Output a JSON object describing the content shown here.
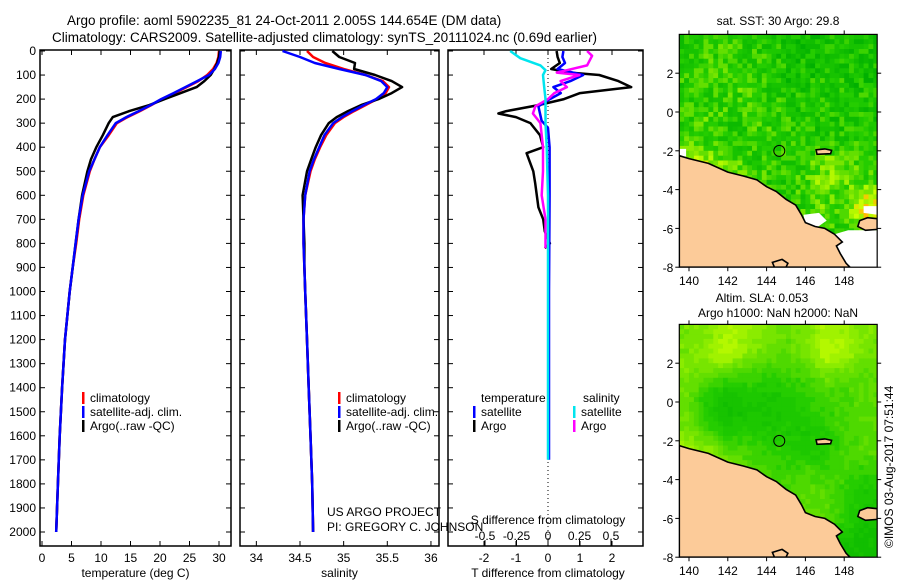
{
  "header": {
    "title_line1": "Argo profile: aoml 5902235_81 24-Oct-2011 2.005S 144.654E (DM data)",
    "title_line2": "Climatology: CARS2009. Satellite-adjusted climatology: synTS_20111024.nc (0.69d earlier)"
  },
  "credits": {
    "project": "US ARGO PROJECT",
    "pi": "PI: GREGORY C. JOHNSON",
    "timestamp": "©IMOS 03-Aug-2017 07:51:44"
  },
  "chart_data": [
    {
      "type": "line",
      "title": "",
      "xlabel": "temperature (deg C)",
      "ylabel": "",
      "xlim": [
        -0.3,
        32
      ],
      "ylim": [
        2058,
        -4
      ],
      "xticks": [
        0,
        5,
        10,
        15,
        20,
        25,
        30
      ],
      "yticks": [
        0,
        100,
        200,
        300,
        400,
        500,
        600,
        700,
        800,
        900,
        1000,
        1100,
        1200,
        1300,
        1400,
        1500,
        1600,
        1700,
        1800,
        1900,
        2000
      ],
      "depth": [
        0,
        25,
        50,
        75,
        100,
        125,
        150,
        175,
        200,
        225,
        250,
        275,
        300,
        350,
        400,
        450,
        500,
        600,
        700,
        800,
        900,
        1000,
        1200,
        1400,
        1600,
        1800,
        2000
      ],
      "series": [
        {
          "name": "climatology",
          "color": "#ff0000",
          "values": [
            30,
            29.9,
            29.6,
            29,
            28,
            26.5,
            24.5,
            22.5,
            20.3,
            18.5,
            16.6,
            14.5,
            12.7,
            11.3,
            9.8,
            8.9,
            8.1,
            7.0,
            6.3,
            5.8,
            5.2,
            4.7,
            3.9,
            3.4,
            3.0,
            2.7,
            2.4
          ]
        },
        {
          "name": "Argo(..raw -QC)",
          "color": "#000000",
          "values": [
            30.1,
            30.0,
            29.7,
            29.2,
            28.6,
            27.5,
            26.2,
            23.5,
            20.8,
            18.2,
            14.8,
            12.0,
            11.3,
            10.3,
            9.2,
            8.3,
            7.7,
            6.8,
            6.2,
            5.7,
            5.2,
            4.7,
            3.9,
            3.4,
            3.0,
            2.7,
            2.4
          ]
        },
        {
          "name": "satellite-adj. clim.",
          "color": "#0000ff",
          "values": [
            30.3,
            30.2,
            29.9,
            29.3,
            28.3,
            26.3,
            24.3,
            22.3,
            20.2,
            18.4,
            16.4,
            14.3,
            12.5,
            11.1,
            9.8,
            8.9,
            8.0,
            6.9,
            6.2,
            5.7,
            5.2,
            4.7,
            3.9,
            3.4,
            3.0,
            2.7,
            2.4
          ]
        }
      ],
      "legend": [
        "climatology",
        "satellite-adj. clim.",
        "Argo(..raw -QC)"
      ],
      "legend_position": "lower-middle"
    },
    {
      "type": "line",
      "title": "",
      "xlabel": "salinity",
      "ylabel": "",
      "xlim": [
        33.81,
        36.09
      ],
      "ylim": [
        2058,
        -4
      ],
      "xticks": [
        34,
        34.5,
        35,
        35.5,
        36
      ],
      "depth": [
        0,
        25,
        50,
        75,
        100,
        125,
        150,
        175,
        200,
        225,
        250,
        275,
        300,
        350,
        400,
        450,
        500,
        600,
        700,
        800,
        900,
        1000,
        1200,
        1400,
        1600,
        1800,
        2000
      ],
      "series": [
        {
          "name": "climatology",
          "color": "#ff0000",
          "values": [
            34.58,
            34.65,
            34.79,
            35.0,
            35.25,
            35.45,
            35.52,
            35.48,
            35.38,
            35.25,
            35.12,
            35.0,
            34.9,
            34.8,
            34.73,
            34.67,
            34.62,
            34.56,
            34.54,
            34.54,
            34.55,
            34.56,
            34.58,
            34.6,
            34.62,
            34.64,
            34.65
          ]
        },
        {
          "name": "Argo(..raw -QC)",
          "color": "#000000",
          "values": [
            34.87,
            34.95,
            35.13,
            35.12,
            35.36,
            35.55,
            35.67,
            35.55,
            35.4,
            35.2,
            35.05,
            34.92,
            34.83,
            34.74,
            34.68,
            34.63,
            34.58,
            34.53,
            34.54,
            34.55,
            34.55,
            34.56,
            34.58,
            34.6,
            34.62,
            34.64,
            34.65
          ]
        },
        {
          "name": "satellite-adj. clim.",
          "color": "#0000ff",
          "values": [
            34.3,
            34.5,
            34.67,
            34.95,
            35.25,
            35.43,
            35.5,
            35.46,
            35.37,
            35.23,
            35.1,
            34.98,
            34.88,
            34.78,
            34.72,
            34.66,
            34.61,
            34.56,
            34.54,
            34.54,
            34.55,
            34.56,
            34.58,
            34.6,
            34.62,
            34.64,
            34.65
          ]
        }
      ],
      "legend": [
        "climatology",
        "satellite-adj. clim.",
        "Argo(..raw -QC)"
      ],
      "legend_position": "lower-middle"
    },
    {
      "type": "line",
      "title": "",
      "xlabel": "T difference from climatology",
      "xlabel2": "S difference from climatology",
      "xlim": [
        -3.125,
        2.97
      ],
      "xlim_s": [
        -0.49,
        0.75
      ],
      "ylim": [
        2058,
        -4
      ],
      "xticks": [
        -2,
        -1,
        0,
        1,
        2
      ],
      "xticks_s": [
        "-0.5",
        "-0.25",
        "0",
        "0.25",
        "0.5"
      ],
      "legend_headers": [
        "temperature",
        "salinity"
      ],
      "series": [
        {
          "name": "Argo",
          "group": "temperature",
          "color": "#000000",
          "depth": [
            0,
            25,
            50,
            75,
            90,
            100,
            125,
            150,
            175,
            200,
            225,
            250,
            260,
            275,
            300,
            350,
            400,
            425,
            450,
            500,
            550,
            600,
            650,
            700,
            750,
            800,
            820
          ],
          "values": [
            0.27,
            0.3,
            0.37,
            0.1,
            0.7,
            1.6,
            2.2,
            2.6,
            1.0,
            0.5,
            -0.3,
            -1.3,
            -1.55,
            -1.0,
            -0.55,
            -0.25,
            -0.15,
            -0.67,
            -0.6,
            -0.46,
            -0.4,
            -0.35,
            -0.3,
            -0.15,
            -0.1,
            0.06,
            -0.1
          ]
        },
        {
          "name": "satellite",
          "group": "temperature",
          "color": "#0000ff",
          "depth": [
            0,
            25,
            50,
            75,
            100,
            125,
            150,
            175,
            200,
            230,
            260,
            290,
            320,
            400,
            600,
            800,
            1000,
            1200,
            1400,
            1600,
            1700
          ],
          "values": [
            0.48,
            0.45,
            0.53,
            0.3,
            1.1,
            0.7,
            0.17,
            0.4,
            0.06,
            -0.3,
            -0.25,
            -0.2,
            0.0,
            0.05,
            0.05,
            0.04,
            0.03,
            0.03,
            0.03,
            0.03,
            0.03
          ]
        },
        {
          "name": "Argo",
          "group": "salinity",
          "color": "#ff00ff",
          "depth": [
            0,
            20,
            40,
            60,
            80,
            90,
            100,
            125,
            150,
            175,
            200,
            230,
            260,
            300,
            400,
            500,
            600,
            700,
            800,
            820
          ],
          "values": [
            0.31,
            0.35,
            0.33,
            0.31,
            0.15,
            0.07,
            0.25,
            0.1,
            0.15,
            0.05,
            0.0,
            -0.1,
            -0.12,
            -0.06,
            -0.04,
            -0.04,
            -0.05,
            -0.02,
            -0.02,
            -0.02
          ]
        },
        {
          "name": "satellite",
          "group": "salinity",
          "color": "#00e5ee",
          "depth": [
            0,
            30,
            60,
            80,
            100,
            150,
            200,
            300,
            400,
            600,
            800,
            1000,
            1200,
            1400,
            1600,
            1700
          ],
          "values": [
            -0.3,
            -0.22,
            -0.06,
            -0.02,
            -0.04,
            -0.03,
            -0.02,
            -0.02,
            -0.01,
            0,
            0,
            0,
            0,
            0,
            0,
            0
          ]
        }
      ]
    },
    {
      "type": "heatmap",
      "title": "sat. SST: 30 Argo: 29.8",
      "xticks": [
        140,
        142,
        144,
        146,
        148
      ],
      "yticks": [
        2,
        0,
        -2,
        -4,
        -6,
        -8
      ],
      "xlim": [
        139.5,
        149.7
      ],
      "ylim": [
        -8,
        4
      ],
      "marker": {
        "lon": 144.654,
        "lat": -2.005
      },
      "grid_note_rows_lat_4_to_-8_cols_lon_139.5_to_149.5": true,
      "grid": [
        [
          0.3,
          0.35,
          0.35,
          0.35,
          0.3,
          0.25,
          0.2,
          0.2,
          0.2,
          0.25
        ],
        [
          0.35,
          0.45,
          0.4,
          0.35,
          0.35,
          0.25,
          0.2,
          0.2,
          0.2,
          0.2
        ],
        [
          0.35,
          0.35,
          0.45,
          0.4,
          0.35,
          0.25,
          0.25,
          0.3,
          0.25,
          0.2
        ],
        [
          0.35,
          0.35,
          0.35,
          0.45,
          0.35,
          0.3,
          0.25,
          0.25,
          0.25,
          0.3
        ],
        [
          0.35,
          0.45,
          0.35,
          0.35,
          0.45,
          0.35,
          0.25,
          0.25,
          0.3,
          0.25
        ],
        [
          0.45,
          0.35,
          0.35,
          0.3,
          0.35,
          0.35,
          0.3,
          0.25,
          0.3,
          0.35
        ],
        [
          0.7,
          0.7,
          0.5,
          0.35,
          0.35,
          0.3,
          0.35,
          0.6,
          0.5,
          0.4
        ],
        [
          0.6,
          0.75,
          0.7,
          0.5,
          0.35,
          0.35,
          0.45,
          0.7,
          0.55,
          0.4
        ],
        [
          0.55,
          0.6,
          0.6,
          0.5,
          0.35,
          0.3,
          0.35,
          0.5,
          0.4,
          0.9
        ],
        [
          0.55,
          0.55,
          0.55,
          0.5,
          0.5,
          0.45,
          0.45,
          0.5,
          0.4,
          0.95
        ],
        [
          0.4,
          0.4,
          0.4,
          0.4,
          0.4,
          0.4,
          0.35,
          0.35,
          0.35,
          0.35
        ],
        [
          0.4,
          0.4,
          0.4,
          0.4,
          0.4,
          0.4,
          0.35,
          0.35,
          0.35,
          0.35
        ]
      ],
      "missing": [
        [
          [
            147.5,
            -6.3
          ],
          [
            148.2,
            -6.1
          ],
          [
            149.7,
            -6.1
          ],
          [
            149.7,
            -8
          ],
          [
            148.3,
            -8
          ],
          [
            148.1,
            -7.8
          ],
          [
            147.8,
            -7.3
          ],
          [
            147.6,
            -6.9
          ],
          [
            147.9,
            -6.7
          ]
        ],
        [
          [
            145.9,
            -5.3
          ],
          [
            146.7,
            -5.2
          ],
          [
            147.1,
            -5.6
          ],
          [
            146.6,
            -5.95
          ],
          [
            146.0,
            -5.8
          ]
        ],
        [
          [
            149.0,
            -4.85
          ],
          [
            149.7,
            -4.85
          ],
          [
            149.7,
            -5.3
          ],
          [
            149.0,
            -5.2
          ]
        ],
        [
          [
            139.5,
            -1.9
          ],
          [
            139.85,
            -1.9
          ],
          [
            139.85,
            -2.3
          ],
          [
            139.5,
            -2.3
          ]
        ],
        [
          [
            144.0,
            -7.7
          ],
          [
            145.0,
            -7.6
          ],
          [
            145.3,
            -8
          ],
          [
            144.0,
            -8
          ]
        ]
      ],
      "noise": 0.22
    },
    {
      "type": "heatmap",
      "title": "Altim. SLA: 0.053",
      "subtitle": "Argo h1000: NaN h2000: NaN",
      "xticks": [
        140,
        142,
        144,
        146,
        148
      ],
      "yticks": [
        2,
        0,
        -2,
        -4,
        -6,
        -8
      ],
      "xlim": [
        139.5,
        149.7
      ],
      "ylim": [
        -8,
        4
      ],
      "marker": {
        "lon": 144.654,
        "lat": -2.005
      },
      "grid": [
        [
          0.6,
          0.65,
          0.75,
          0.7,
          0.6,
          0.55,
          0.6,
          0.75,
          0.7,
          0.6
        ],
        [
          0.6,
          0.7,
          0.8,
          0.65,
          0.55,
          0.5,
          0.6,
          0.8,
          0.75,
          0.6
        ],
        [
          0.6,
          0.55,
          0.5,
          0.45,
          0.4,
          0.45,
          0.45,
          0.6,
          0.55,
          0.5
        ],
        [
          0.55,
          0.35,
          0.25,
          0.3,
          0.3,
          0.3,
          0.4,
          0.45,
          0.45,
          0.5
        ],
        [
          0.55,
          0.3,
          0.2,
          0.25,
          0.25,
          0.3,
          0.35,
          0.4,
          0.45,
          0.5
        ],
        [
          0.6,
          0.45,
          0.3,
          0.35,
          0.3,
          0.3,
          0.3,
          0.35,
          0.45,
          0.5
        ],
        [
          0.7,
          0.65,
          0.5,
          0.45,
          0.4,
          0.35,
          0.3,
          0.3,
          0.45,
          0.5
        ],
        [
          0.75,
          0.75,
          0.65,
          0.5,
          0.45,
          0.4,
          0.45,
          0.4,
          0.45,
          0.4
        ],
        [
          0.8,
          0.8,
          0.7,
          0.55,
          0.5,
          0.45,
          0.5,
          0.5,
          0.4,
          0.3
        ],
        [
          0.8,
          0.8,
          0.7,
          0.6,
          0.55,
          0.5,
          0.55,
          0.5,
          0.4,
          0.25
        ],
        [
          0.7,
          0.7,
          0.6,
          0.55,
          0.5,
          0.5,
          0.5,
          0.45,
          0.35,
          0.2
        ],
        [
          0.6,
          0.6,
          0.5,
          0.45,
          0.4,
          0.4,
          0.35,
          0.2,
          0.2,
          0.2
        ]
      ],
      "missing": [],
      "noise": 0.04
    }
  ],
  "map_common": {
    "colormap": [
      [
        0,
        "#00b000"
      ],
      [
        0.35,
        "#22cc00"
      ],
      [
        0.55,
        "#66e000"
      ],
      [
        0.7,
        "#99f000"
      ],
      [
        0.85,
        "#ccff00"
      ],
      [
        1,
        "#ffbb00"
      ]
    ],
    "land_color": "#fccb99",
    "land": [
      [
        [
          139.5,
          -2.25
        ],
        [
          140,
          -2.4
        ],
        [
          141,
          -2.65
        ],
        [
          142,
          -3.1
        ],
        [
          142.8,
          -3.3
        ],
        [
          143.5,
          -3.5
        ],
        [
          144,
          -3.85
        ],
        [
          144.5,
          -4.1
        ],
        [
          145,
          -4.5
        ],
        [
          145.5,
          -4.8
        ],
        [
          145.8,
          -5.3
        ],
        [
          146,
          -5.7
        ],
        [
          146.5,
          -5.9
        ],
        [
          147,
          -6.0
        ],
        [
          147.5,
          -6.3
        ],
        [
          147.9,
          -6.7
        ],
        [
          147.6,
          -6.9
        ],
        [
          147.8,
          -7.3
        ],
        [
          148.1,
          -7.8
        ],
        [
          148.3,
          -8
        ],
        [
          139.5,
          -8
        ]
      ],
      [
        [
          148.8,
          -5.6
        ],
        [
          149.2,
          -5.45
        ],
        [
          149.7,
          -5.5
        ],
        [
          149.7,
          -6.05
        ],
        [
          149.1,
          -6.1
        ],
        [
          148.7,
          -5.9
        ]
      ],
      [
        [
          146.55,
          -1.95
        ],
        [
          147.0,
          -1.9
        ],
        [
          147.35,
          -1.98
        ],
        [
          147.3,
          -2.15
        ],
        [
          146.6,
          -2.18
        ]
      ],
      [
        [
          144.3,
          -7.75
        ],
        [
          144.8,
          -7.6
        ],
        [
          145.1,
          -7.8
        ],
        [
          145.0,
          -8
        ],
        [
          144.4,
          -8
        ]
      ]
    ]
  }
}
